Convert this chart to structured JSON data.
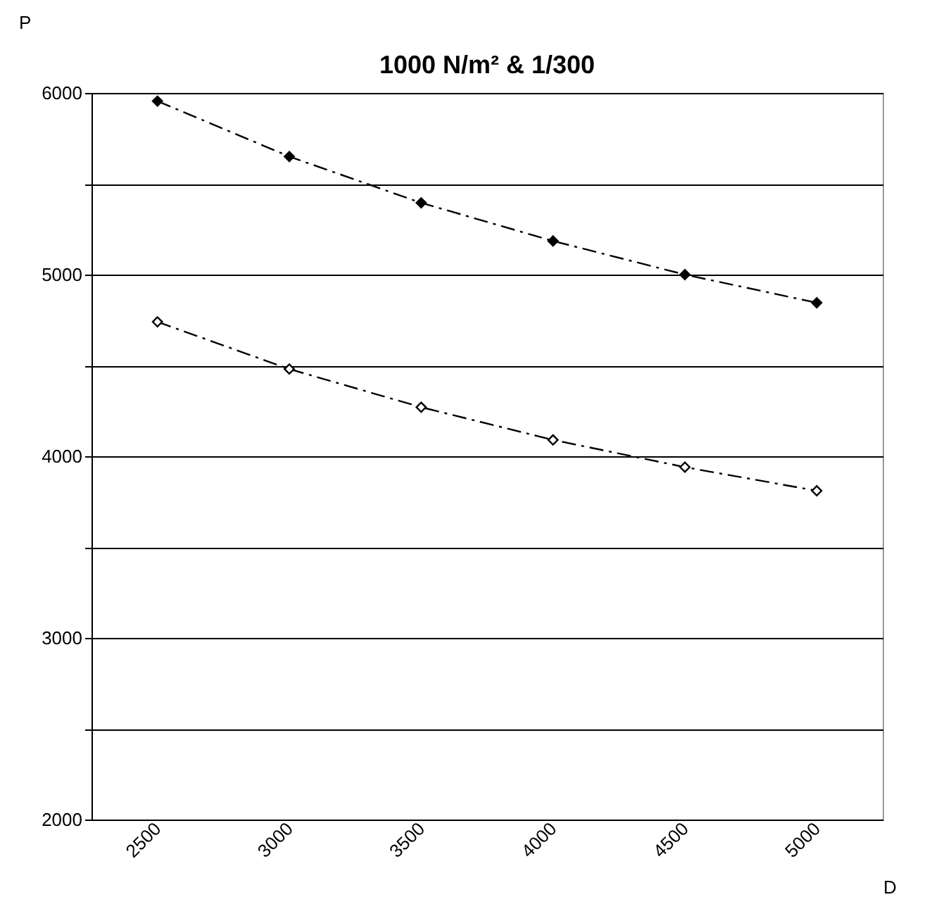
{
  "chart_data": {
    "type": "line",
    "title": "1000 N/m² & 1/300",
    "xlabel": "D",
    "ylabel": "P",
    "categories": [
      "2500",
      "3000",
      "3500",
      "4000",
      "4500",
      "5000"
    ],
    "series": [
      {
        "color": "#000000",
        "values": [
          5955,
          5650,
          5395,
          5185,
          5000,
          4845
        ]
      },
      {
        "color": "#000000",
        "values": [
          4740,
          4480,
          4270,
          4090,
          3940,
          3810
        ]
      }
    ],
    "ylim": [
      2000,
      6000
    ],
    "yticks": [
      2000,
      {
        "value": 2500,
        "label": null
      },
      3000,
      {
        "value": 3500,
        "label": null
      },
      4000,
      {
        "value": 4500,
        "label": null
      },
      5000,
      {
        "value": 5500,
        "label": null
      },
      6000
    ],
    "grid": "y",
    "legend": false,
    "marker": "diamond",
    "line_style": "dashed"
  }
}
